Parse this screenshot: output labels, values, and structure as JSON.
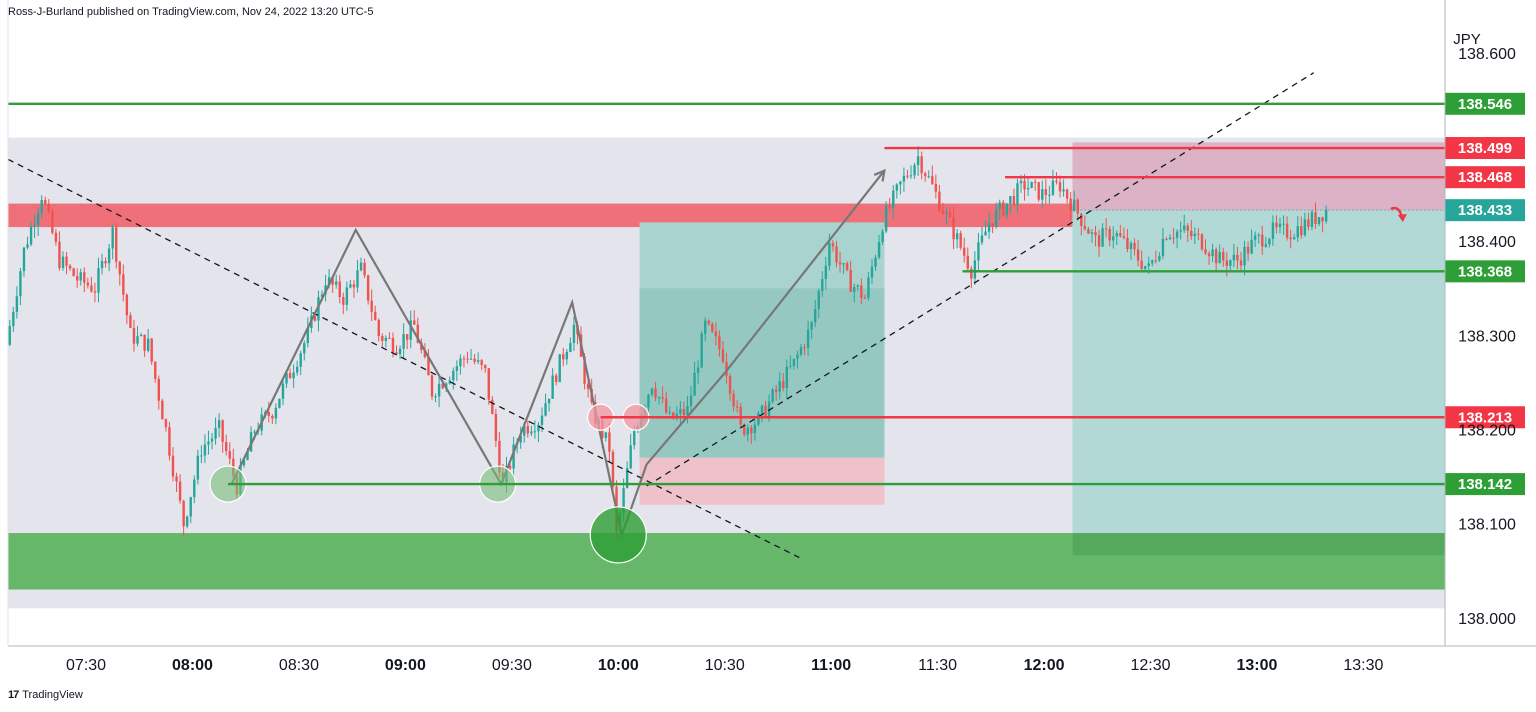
{
  "header": {
    "attribution": "Ross-J-Burland published on TradingView.com, Nov 24, 2022 13:20 UTC-5"
  },
  "footer": {
    "logo_mark": "17",
    "brand": "TradingView"
  },
  "chart_data": {
    "type": "candlestick",
    "symbol_currency": "JPY",
    "ylim": [
      137.97,
      138.635
    ],
    "y_ticks": [
      138.0,
      138.1,
      138.2,
      138.3,
      138.4,
      138.6
    ],
    "y_tick_labels": [
      "138.000",
      "138.100",
      "138.200",
      "138.300",
      "138.400",
      "138.600"
    ],
    "x_range": [
      "07:08",
      "13:53"
    ],
    "x_ticks": [
      "07:30",
      "08:00",
      "08:30",
      "09:00",
      "09:30",
      "10:00",
      "10:30",
      "11:00",
      "11:30",
      "12:00",
      "12:30",
      "13:00",
      "13:30"
    ],
    "x_ticks_bold": [
      "08:00",
      "09:00",
      "10:00",
      "11:00",
      "12:00",
      "13:00"
    ],
    "price_levels": [
      {
        "price": 138.546,
        "label": "138.546",
        "color": "#2e9e36",
        "from": "07:08"
      },
      {
        "price": 138.499,
        "label": "138.499",
        "color": "#f23645",
        "from": "11:15"
      },
      {
        "price": 138.468,
        "label": "138.468",
        "color": "#f23645",
        "from": "11:49"
      },
      {
        "price": 138.433,
        "label": "138.433",
        "color": "#26a69a",
        "from": "12:08",
        "dotted": true
      },
      {
        "price": 138.368,
        "label": "138.368",
        "color": "#2e9e36",
        "from": "11:37"
      },
      {
        "price": 138.213,
        "label": "138.213",
        "color": "#f23645",
        "from": "09:55"
      },
      {
        "price": 138.142,
        "label": "138.142",
        "color": "#2e9e36",
        "from": "08:10"
      }
    ],
    "zones": [
      {
        "name": "range-box",
        "from": "07:08",
        "to": "13:53",
        "y1": 138.01,
        "y2": 138.51,
        "color": "#e4e4ec"
      },
      {
        "name": "resistance-zone",
        "from": "07:08",
        "to": "13:53",
        "y1": 138.415,
        "y2": 138.44,
        "color": "#f0707a"
      },
      {
        "name": "support-zone",
        "from": "07:08",
        "to": "13:53",
        "y1": 138.03,
        "y2": 138.09,
        "color": "#66b76a"
      },
      {
        "name": "long-target",
        "from": "10:06",
        "to": "11:15",
        "y1": 138.17,
        "y2": 138.42,
        "color": "#a9d3ce"
      },
      {
        "name": "long-inner",
        "from": "10:06",
        "to": "11:15",
        "y1": 138.17,
        "y2": 138.35,
        "color": "#96c8c2"
      },
      {
        "name": "long-stop",
        "from": "10:06",
        "to": "11:15",
        "y1": 138.12,
        "y2": 138.17,
        "color": "#efc2cb"
      },
      {
        "name": "short-risk",
        "from": "12:08",
        "to": "13:53",
        "y1": 138.433,
        "y2": 138.505,
        "color": "#dcb3c6"
      },
      {
        "name": "short-target",
        "from": "12:08",
        "to": "13:53",
        "y1": 138.066,
        "y2": 138.433,
        "color": "#b3d9d7"
      },
      {
        "name": "short-target-low",
        "from": "12:08",
        "to": "13:53",
        "y1": 138.066,
        "y2": 138.09,
        "color": "#54a95c"
      }
    ],
    "trendlines": [
      {
        "name": "downtrend",
        "points": [
          [
            "07:08",
            138.487
          ],
          [
            "10:51",
            138.064
          ]
        ],
        "style": "dashed"
      },
      {
        "name": "uptrend",
        "points": [
          [
            "10:08",
            138.14
          ],
          [
            "13:16",
            138.579
          ]
        ],
        "style": "dashed"
      }
    ],
    "pattern_path": [
      [
        "08:11",
        138.142
      ],
      [
        "08:46",
        138.412
      ],
      [
        "09:27",
        138.142
      ],
      [
        "09:47",
        138.335
      ],
      [
        "10:01",
        138.088
      ],
      [
        "10:08",
        138.163
      ],
      [
        "10:30",
        138.26
      ],
      [
        "11:15",
        138.475
      ]
    ],
    "markers": [
      {
        "time": "08:10",
        "price": 138.142,
        "kind": "support-touch"
      },
      {
        "time": "09:26",
        "price": 138.142,
        "kind": "support-touch"
      },
      {
        "time": "10:00",
        "price": 138.088,
        "kind": "low"
      },
      {
        "time": "09:55",
        "price": 138.213,
        "kind": "resistance-touch"
      },
      {
        "time": "10:05",
        "price": 138.213,
        "kind": "resistance-touch"
      }
    ],
    "projection_arrow": {
      "time": "13:40",
      "price": 138.43,
      "direction": "down"
    },
    "price_path": [
      [
        "07:08",
        138.29
      ],
      [
        "07:13",
        138.39
      ],
      [
        "07:18",
        138.45
      ],
      [
        "07:23",
        138.38
      ],
      [
        "07:28",
        138.36
      ],
      [
        "07:33",
        138.35
      ],
      [
        "07:38",
        138.41
      ],
      [
        "07:43",
        138.3
      ],
      [
        "07:48",
        138.29
      ],
      [
        "07:53",
        138.2
      ],
      [
        "07:58",
        138.1
      ],
      [
        "08:03",
        138.18
      ],
      [
        "08:08",
        138.2
      ],
      [
        "08:13",
        138.14
      ],
      [
        "08:18",
        138.2
      ],
      [
        "08:23",
        138.22
      ],
      [
        "08:28",
        138.26
      ],
      [
        "08:33",
        138.3
      ],
      [
        "08:38",
        138.36
      ],
      [
        "08:43",
        138.34
      ],
      [
        "08:48",
        138.37
      ],
      [
        "08:53",
        138.3
      ],
      [
        "08:58",
        138.29
      ],
      [
        "09:03",
        138.31
      ],
      [
        "09:08",
        138.24
      ],
      [
        "09:13",
        138.26
      ],
      [
        "09:18",
        138.28
      ],
      [
        "09:23",
        138.26
      ],
      [
        "09:28",
        138.14
      ],
      [
        "09:33",
        138.2
      ],
      [
        "09:38",
        138.21
      ],
      [
        "09:43",
        138.26
      ],
      [
        "09:48",
        138.31
      ],
      [
        "09:53",
        138.22
      ],
      [
        "09:58",
        138.18
      ],
      [
        "10:00",
        138.088
      ],
      [
        "10:05",
        138.2
      ],
      [
        "10:10",
        138.25
      ],
      [
        "10:15",
        138.21
      ],
      [
        "10:20",
        138.22
      ],
      [
        "10:25",
        138.31
      ],
      [
        "10:30",
        138.28
      ],
      [
        "10:35",
        138.2
      ],
      [
        "10:40",
        138.21
      ],
      [
        "10:45",
        138.24
      ],
      [
        "10:50",
        138.27
      ],
      [
        "10:55",
        138.31
      ],
      [
        "11:00",
        138.4
      ],
      [
        "11:05",
        138.36
      ],
      [
        "11:10",
        138.34
      ],
      [
        "11:15",
        138.42
      ],
      [
        "11:20",
        138.46
      ],
      [
        "11:25",
        138.49
      ],
      [
        "11:30",
        138.45
      ],
      [
        "11:35",
        138.41
      ],
      [
        "11:40",
        138.37
      ],
      [
        "11:45",
        138.42
      ],
      [
        "11:50",
        138.44
      ],
      [
        "11:55",
        138.46
      ],
      [
        "12:00",
        138.45
      ],
      [
        "12:05",
        138.46
      ],
      [
        "12:10",
        138.43
      ],
      [
        "12:15",
        138.4
      ],
      [
        "12:20",
        138.41
      ],
      [
        "12:25",
        138.39
      ],
      [
        "12:30",
        138.37
      ],
      [
        "12:35",
        138.41
      ],
      [
        "12:40",
        138.41
      ],
      [
        "12:45",
        138.4
      ],
      [
        "12:50",
        138.38
      ],
      [
        "12:55",
        138.38
      ],
      [
        "13:00",
        138.4
      ],
      [
        "13:05",
        138.41
      ],
      [
        "13:10",
        138.41
      ],
      [
        "13:15",
        138.42
      ],
      [
        "13:20",
        138.433
      ]
    ]
  }
}
